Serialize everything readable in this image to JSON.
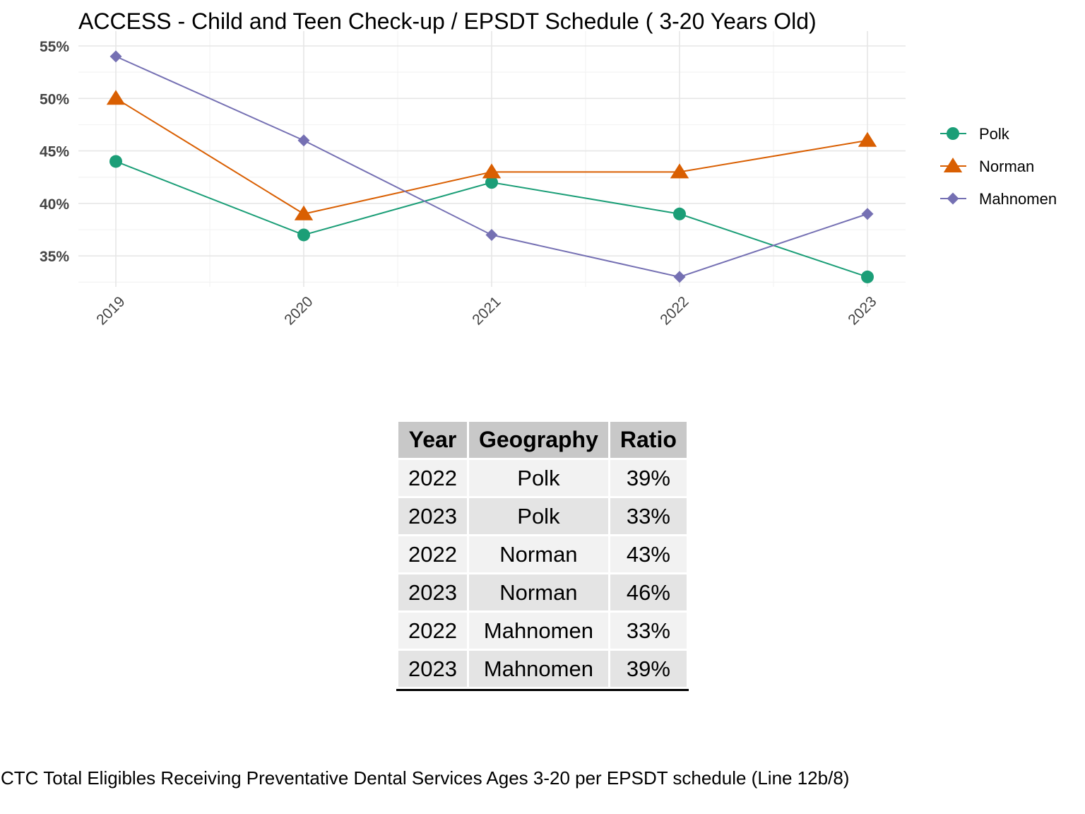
{
  "chart_data": {
    "type": "line",
    "title": "ACCESS - Child and Teen Check-up / EPSDT Schedule ( 3-20  Years Old)",
    "xlabel": "",
    "ylabel": "",
    "x": [
      "2019",
      "2020",
      "2021",
      "2022",
      "2023"
    ],
    "y_ticks": [
      "35%",
      "40%",
      "45%",
      "50%",
      "55%"
    ],
    "y_tick_values": [
      0.35,
      0.4,
      0.45,
      0.5,
      0.55
    ],
    "ylim": [
      0.325,
      0.55
    ],
    "grid": true,
    "legend_position": "right",
    "series": [
      {
        "name": "Polk",
        "color": "#1b9e77",
        "marker": "circle",
        "values": [
          0.44,
          0.37,
          0.42,
          0.39,
          0.33
        ]
      },
      {
        "name": "Norman",
        "color": "#d95f02",
        "marker": "triangle",
        "values": [
          0.5,
          0.39,
          0.43,
          0.43,
          0.46
        ]
      },
      {
        "name": "Mahnomen",
        "color": "#7570b3",
        "marker": "diamond",
        "values": [
          0.54,
          0.46,
          0.37,
          0.33,
          0.39
        ]
      }
    ]
  },
  "table": {
    "headers": {
      "year": "Year",
      "geography": "Geography",
      "ratio": "Ratio"
    },
    "rows": [
      {
        "year": "2022",
        "geography": "Polk",
        "ratio": "39%"
      },
      {
        "year": "2023",
        "geography": "Polk",
        "ratio": "33%"
      },
      {
        "year": "2022",
        "geography": "Norman",
        "ratio": "43%"
      },
      {
        "year": "2023",
        "geography": "Norman",
        "ratio": "46%"
      },
      {
        "year": "2022",
        "geography": "Mahnomen",
        "ratio": "33%"
      },
      {
        "year": "2023",
        "geography": "Mahnomen",
        "ratio": "39%"
      }
    ]
  },
  "caption": "CTC Total Eligibles Receiving Preventative Dental Services Ages 3-20 per EPSDT schedule (Line 12b/8)"
}
